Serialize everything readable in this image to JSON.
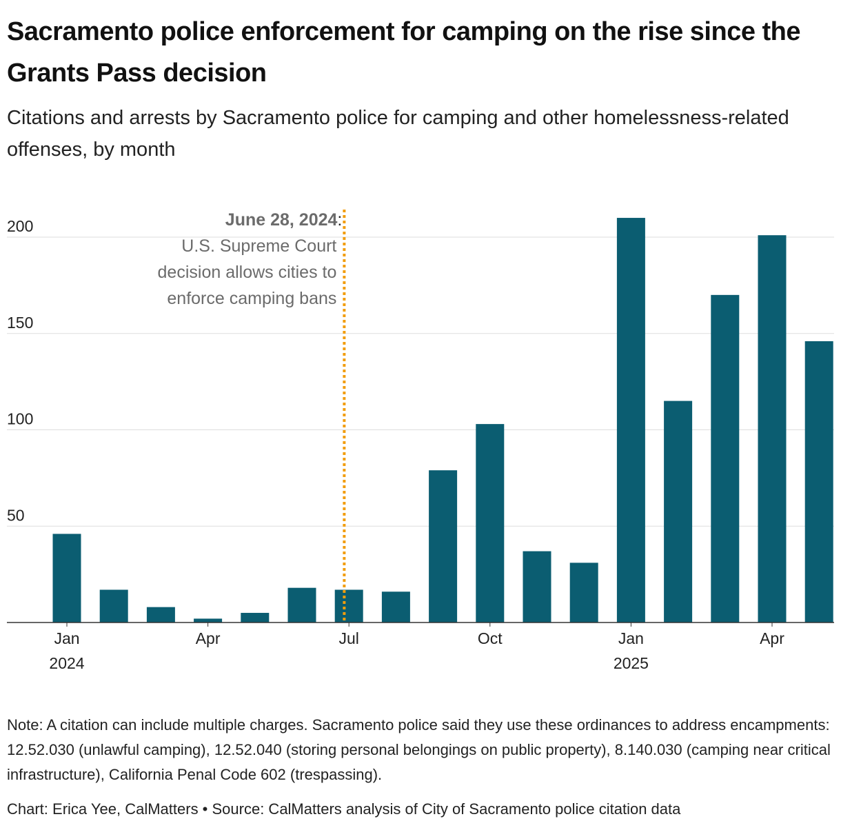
{
  "title": "Sacramento police enforcement for camping on the rise since the Grants Pass decision",
  "subtitle": "Citations and arrests by Sacramento police for camping and other homelessness-related offenses, by month",
  "note": "Note: A citation can include multiple charges. Sacramento police said they use these ordinances to address encampments: 12.52.030 (unlawful camping), 12.52.040 (storing personal belongings on public property), 8.140.030 (camping near critical infrastructure), California Penal Code 602 (trespassing).",
  "credit": "Chart: Erica Yee, CalMatters • Source: CalMatters analysis of City of Sacramento police citation data",
  "colors": {
    "bar": "#0b5d71",
    "marker_line": "#f29d0c",
    "grid": "#dddddd",
    "axis": "#333333",
    "annotation_text": "#6b6b6b"
  },
  "chart_data": {
    "type": "bar",
    "categories": [
      "2024-01",
      "2024-02",
      "2024-03",
      "2024-04",
      "2024-05",
      "2024-06",
      "2024-07",
      "2024-08",
      "2024-09",
      "2024-10",
      "2024-11",
      "2024-12",
      "2025-01",
      "2025-02",
      "2025-03",
      "2025-04",
      "2025-05"
    ],
    "values": [
      46,
      17,
      8,
      2,
      5,
      18,
      17,
      16,
      79,
      103,
      37,
      31,
      210,
      115,
      170,
      201,
      146
    ],
    "ylim": [
      0,
      215
    ],
    "yticks": [
      {
        "value": 50,
        "label": "50"
      },
      {
        "value": 100,
        "label": "100"
      },
      {
        "value": 150,
        "label": "150"
      },
      {
        "value": 200,
        "label": "200"
      }
    ],
    "xticks": [
      {
        "index": 0,
        "label": "Jan",
        "year": "2024"
      },
      {
        "index": 3,
        "label": "Apr",
        "year": ""
      },
      {
        "index": 6,
        "label": "Jul",
        "year": ""
      },
      {
        "index": 9,
        "label": "Oct",
        "year": ""
      },
      {
        "index": 12,
        "label": "Jan",
        "year": "2025"
      },
      {
        "index": 15,
        "label": "Apr",
        "year": ""
      }
    ],
    "grid": true,
    "annotation": {
      "date": "June 28, 2024",
      "suffix": ":",
      "lines": [
        "U.S. Supreme Court",
        "decision allows cities to",
        "enforce camping bans"
      ],
      "position_month_index": 5.9
    }
  }
}
